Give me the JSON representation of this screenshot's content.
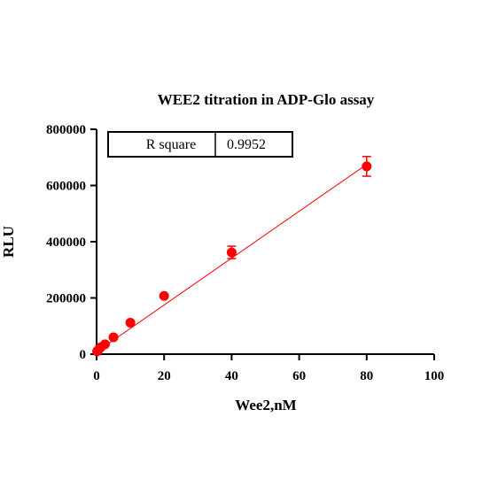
{
  "chart_data": {
    "type": "scatter",
    "title": "WEE2 titration in ADP-Glo assay",
    "xlabel": "Wee2,nM",
    "ylabel": "RLU",
    "xlim": [
      0,
      100
    ],
    "ylim": [
      0,
      800000
    ],
    "xticks": [
      "0",
      "20",
      "40",
      "60",
      "80",
      "100"
    ],
    "yticks": [
      "0",
      "200000",
      "400000",
      "600000",
      "800000"
    ],
    "grid": false,
    "color": "#ff0000",
    "series": [
      {
        "x": [
          0.156,
          0.3125,
          0.625,
          1.25,
          2.5,
          5,
          10,
          20,
          40,
          80
        ],
        "y": [
          10000,
          12000,
          16000,
          25000,
          35000,
          60000,
          112000,
          207000,
          362000,
          668000
        ],
        "error": [
          0,
          0,
          0,
          0,
          0,
          0,
          0,
          0,
          22000,
          35000
        ]
      }
    ],
    "fit_line": {
      "x": [
        0,
        80
      ],
      "y": [
        8000,
        675000
      ]
    },
    "stats_table": {
      "label": "R square",
      "value": "0.9952"
    }
  }
}
